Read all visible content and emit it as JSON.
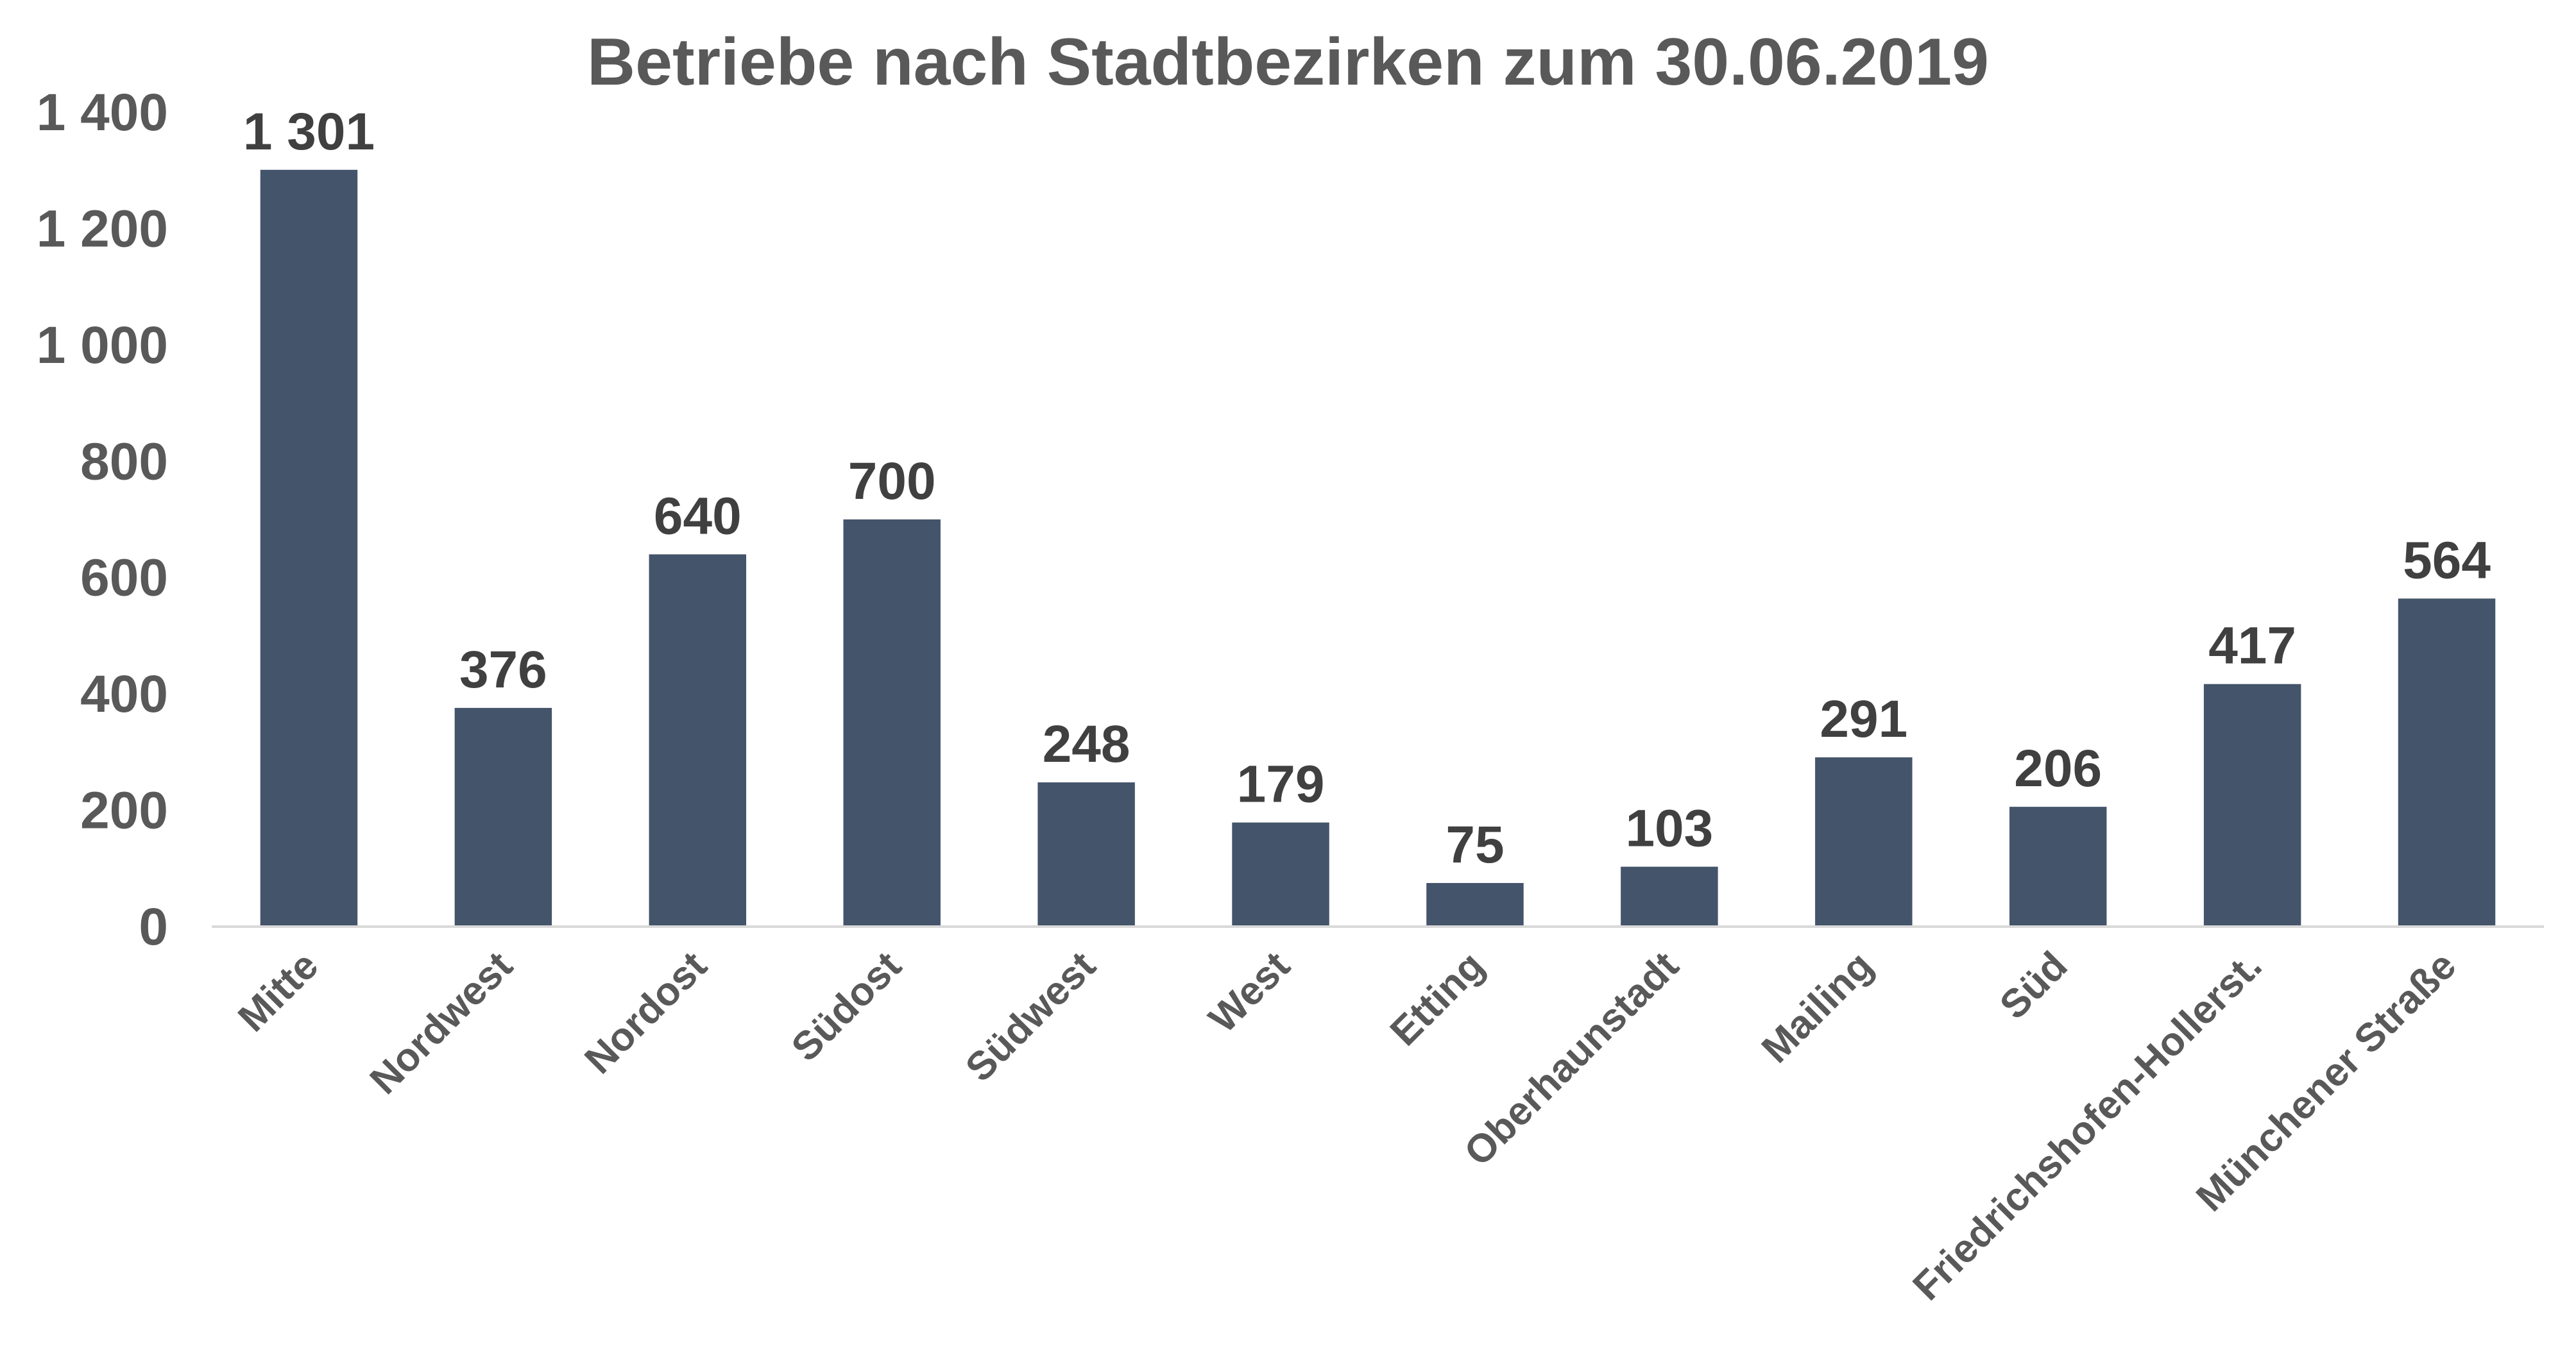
{
  "chart_data": {
    "type": "bar",
    "title": "Betriebe nach Stadtbezirken zum 30.06.2019",
    "xlabel": "",
    "ylabel": "",
    "categories": [
      "Mitte",
      "Nordwest",
      "Nordost",
      "Südost",
      "Südwest",
      "West",
      "Etting",
      "Oberhaunstadt",
      "Mailing",
      "Süd",
      "Friedrichshofen-Hollerst.",
      "Münchener Straße"
    ],
    "values": [
      1301,
      376,
      640,
      700,
      248,
      179,
      75,
      103,
      291,
      206,
      417,
      564
    ],
    "data_labels": [
      "1 301",
      "376",
      "640",
      "700",
      "248",
      "179",
      "75",
      "103",
      "291",
      "206",
      "417",
      "564"
    ],
    "y_ticks": [
      0,
      200,
      400,
      600,
      800,
      1000,
      1200,
      1400
    ],
    "y_tick_labels": [
      "0",
      "200",
      "400",
      "600",
      "800",
      "1 000",
      "1 200",
      "1 400"
    ],
    "ylim": [
      0,
      1400
    ],
    "grid": false,
    "legend": "none",
    "bar_color": "#44546A",
    "axis_color": "#D9D9D9"
  }
}
